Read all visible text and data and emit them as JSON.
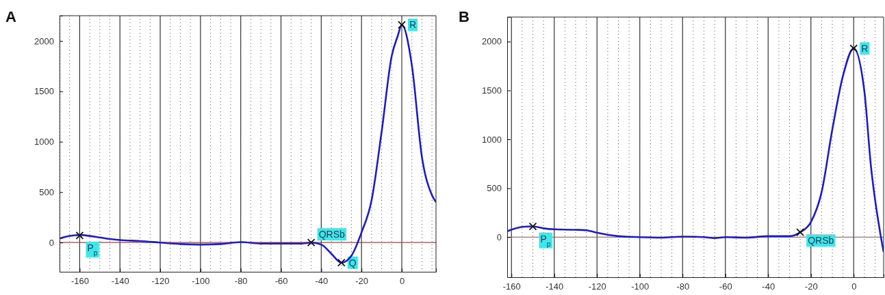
{
  "chart_data": [
    {
      "type": "line",
      "title": "A",
      "xlim": [
        -170,
        17
      ],
      "ylim": [
        -290,
        2250
      ],
      "xticks": [
        -160,
        -140,
        -120,
        -100,
        -80,
        -60,
        -40,
        -20,
        0
      ],
      "yticks": [
        0,
        500,
        1000,
        1500,
        2000
      ],
      "grid": "x",
      "series": [
        {
          "color": "#1c1cc8",
          "x": [
            -170,
            -165,
            -160,
            -155,
            -150,
            -145,
            -140,
            -130,
            -120,
            -110,
            -100,
            -90,
            -80,
            -70,
            -60,
            -50,
            -45,
            -40,
            -35,
            -30,
            -25,
            -20,
            -15,
            -10,
            -5,
            -2,
            0,
            5,
            10,
            15,
            17
          ],
          "values": [
            40,
            65,
            75,
            65,
            50,
            35,
            25,
            15,
            0,
            -15,
            -20,
            -15,
            5,
            -10,
            -10,
            -10,
            0,
            -20,
            -110,
            -200,
            -130,
            100,
            420,
            1100,
            1850,
            2050,
            2160,
            1760,
            850,
            470,
            400
          ]
        }
      ],
      "ref_lines": [
        {
          "axis": "y",
          "value": 0,
          "color": "#b03a3a"
        }
      ],
      "annotations": [
        {
          "text": "P$_{p}$",
          "x": -160,
          "y": 70
        },
        {
          "text": "QRSb",
          "x": -45,
          "y": 0
        },
        {
          "text": "Q",
          "x": -30,
          "y": -200
        },
        {
          "text": "R",
          "x": 0,
          "y": 2160
        }
      ]
    },
    {
      "type": "line",
      "title": "B",
      "xlim": [
        -162,
        14
      ],
      "ylim": [
        -410,
        2250
      ],
      "xticks": [
        -160,
        -140,
        -120,
        -100,
        -80,
        -60,
        -40,
        -20,
        0
      ],
      "yticks": [
        0,
        500,
        1000,
        1500,
        2000
      ],
      "grid": "x",
      "series": [
        {
          "color": "#1c1cc8",
          "x": [
            -162,
            -155,
            -150,
            -145,
            -140,
            -130,
            -125,
            -120,
            -110,
            -100,
            -90,
            -80,
            -70,
            -65,
            -60,
            -50,
            -40,
            -30,
            -25,
            -20,
            -15,
            -10,
            -5,
            0,
            5,
            8,
            12.5,
            14
          ],
          "values": [
            60,
            105,
            110,
            90,
            80,
            75,
            70,
            45,
            10,
            0,
            -5,
            5,
            0,
            -10,
            0,
            -5,
            10,
            10,
            50,
            155,
            460,
            1100,
            1650,
            1930,
            1490,
            740,
            30,
            -150
          ]
        }
      ],
      "ref_lines": [
        {
          "axis": "y",
          "value": 0,
          "color": "#b03a3a"
        }
      ],
      "annotations": [
        {
          "text": "P$_{p}$",
          "x": -150,
          "y": 110
        },
        {
          "text": "QRSb",
          "x": -25,
          "y": 50
        },
        {
          "text": "R",
          "x": 0,
          "y": 1930
        }
      ]
    }
  ]
}
